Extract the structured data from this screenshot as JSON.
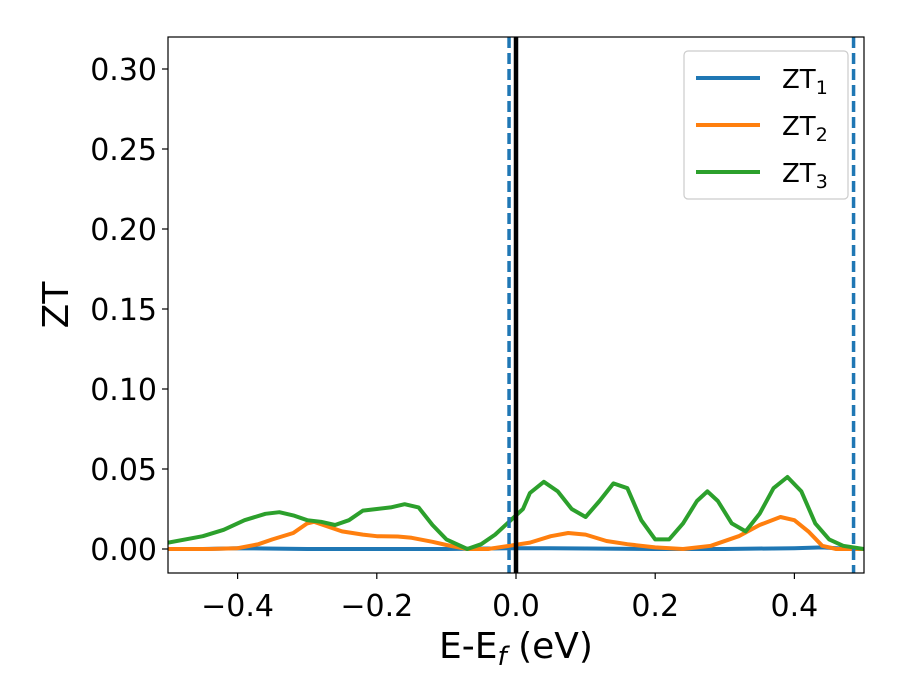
{
  "chart_data": {
    "type": "line",
    "xlabel": {
      "main": "E-E",
      "sub": "f",
      "unit": " (eV)"
    },
    "ylabel": "ZT",
    "xlim": [
      -0.5,
      0.5
    ],
    "ylim": [
      -0.015,
      0.32
    ],
    "xticks": [
      -0.4,
      -0.2,
      0.0,
      0.2,
      0.4
    ],
    "xtick_labels": [
      "−0.4",
      "−0.2",
      "0.0",
      "0.2",
      "0.4"
    ],
    "yticks": [
      0.0,
      0.05,
      0.1,
      0.15,
      0.2,
      0.25,
      0.3
    ],
    "ytick_labels": [
      "0.00",
      "0.05",
      "0.10",
      "0.15",
      "0.20",
      "0.25",
      "0.30"
    ],
    "grid": false,
    "legend_position": "top-right",
    "reference_lines": [
      {
        "x": 0.0,
        "color": "#000000",
        "style": "solid"
      },
      {
        "x": -0.01,
        "color": "#1f77b4",
        "style": "dashed"
      },
      {
        "x": 0.485,
        "color": "#1f77b4",
        "style": "dashed"
      }
    ],
    "series": [
      {
        "name": "ZT",
        "subscript": "1",
        "color": "#1f77b4",
        "points": [
          [
            -0.5,
            0.0
          ],
          [
            -0.45,
            0.0
          ],
          [
            -0.4,
            0.0005
          ],
          [
            -0.3,
            0.0
          ],
          [
            -0.2,
            0.0
          ],
          [
            -0.1,
            0.0
          ],
          [
            -0.05,
            0.0002
          ],
          [
            0.0,
            0.0005
          ],
          [
            0.05,
            0.0005
          ],
          [
            0.1,
            0.0003
          ],
          [
            0.2,
            0.0
          ],
          [
            0.3,
            0.0
          ],
          [
            0.4,
            0.0005
          ],
          [
            0.44,
            0.001
          ],
          [
            0.48,
            0.0
          ],
          [
            0.5,
            0.0
          ]
        ]
      },
      {
        "name": "ZT",
        "subscript": "2",
        "color": "#ff7f0e",
        "points": [
          [
            -0.5,
            0.0
          ],
          [
            -0.44,
            0.0
          ],
          [
            -0.4,
            0.0005
          ],
          [
            -0.37,
            0.003
          ],
          [
            -0.35,
            0.006
          ],
          [
            -0.32,
            0.01
          ],
          [
            -0.3,
            0.016
          ],
          [
            -0.29,
            0.017
          ],
          [
            -0.27,
            0.014
          ],
          [
            -0.25,
            0.011
          ],
          [
            -0.22,
            0.009
          ],
          [
            -0.2,
            0.008
          ],
          [
            -0.17,
            0.0078
          ],
          [
            -0.15,
            0.007
          ],
          [
            -0.12,
            0.0045
          ],
          [
            -0.1,
            0.0025
          ],
          [
            -0.07,
            0.0
          ],
          [
            -0.04,
            0.0
          ],
          [
            -0.01,
            0.002
          ],
          [
            0.02,
            0.004
          ],
          [
            0.05,
            0.008
          ],
          [
            0.075,
            0.01
          ],
          [
            0.1,
            0.009
          ],
          [
            0.13,
            0.005
          ],
          [
            0.16,
            0.003
          ],
          [
            0.2,
            0.001
          ],
          [
            0.24,
            0.0
          ],
          [
            0.28,
            0.002
          ],
          [
            0.32,
            0.008
          ],
          [
            0.35,
            0.015
          ],
          [
            0.38,
            0.02
          ],
          [
            0.4,
            0.018
          ],
          [
            0.42,
            0.011
          ],
          [
            0.44,
            0.002
          ],
          [
            0.46,
            0.0
          ],
          [
            0.5,
            0.0
          ]
        ]
      },
      {
        "name": "ZT",
        "subscript": "3",
        "color": "#2ca02c",
        "points": [
          [
            -0.5,
            0.004
          ],
          [
            -0.45,
            0.008
          ],
          [
            -0.42,
            0.012
          ],
          [
            -0.39,
            0.018
          ],
          [
            -0.36,
            0.022
          ],
          [
            -0.34,
            0.023
          ],
          [
            -0.32,
            0.021
          ],
          [
            -0.3,
            0.018
          ],
          [
            -0.28,
            0.017
          ],
          [
            -0.26,
            0.015
          ],
          [
            -0.24,
            0.018
          ],
          [
            -0.22,
            0.024
          ],
          [
            -0.2,
            0.025
          ],
          [
            -0.18,
            0.026
          ],
          [
            -0.16,
            0.028
          ],
          [
            -0.14,
            0.026
          ],
          [
            -0.12,
            0.015
          ],
          [
            -0.1,
            0.006
          ],
          [
            -0.07,
            0.0
          ],
          [
            -0.05,
            0.003
          ],
          [
            -0.03,
            0.009
          ],
          [
            -0.01,
            0.017
          ],
          [
            0.01,
            0.025
          ],
          [
            0.02,
            0.035
          ],
          [
            0.04,
            0.042
          ],
          [
            0.06,
            0.036
          ],
          [
            0.08,
            0.025
          ],
          [
            0.1,
            0.02
          ],
          [
            0.12,
            0.03
          ],
          [
            0.14,
            0.041
          ],
          [
            0.16,
            0.038
          ],
          [
            0.18,
            0.018
          ],
          [
            0.2,
            0.006
          ],
          [
            0.22,
            0.006
          ],
          [
            0.24,
            0.016
          ],
          [
            0.26,
            0.03
          ],
          [
            0.275,
            0.036
          ],
          [
            0.29,
            0.03
          ],
          [
            0.31,
            0.016
          ],
          [
            0.33,
            0.011
          ],
          [
            0.35,
            0.022
          ],
          [
            0.37,
            0.038
          ],
          [
            0.39,
            0.045
          ],
          [
            0.41,
            0.036
          ],
          [
            0.43,
            0.016
          ],
          [
            0.45,
            0.006
          ],
          [
            0.47,
            0.002
          ],
          [
            0.5,
            0.0
          ]
        ]
      }
    ]
  }
}
